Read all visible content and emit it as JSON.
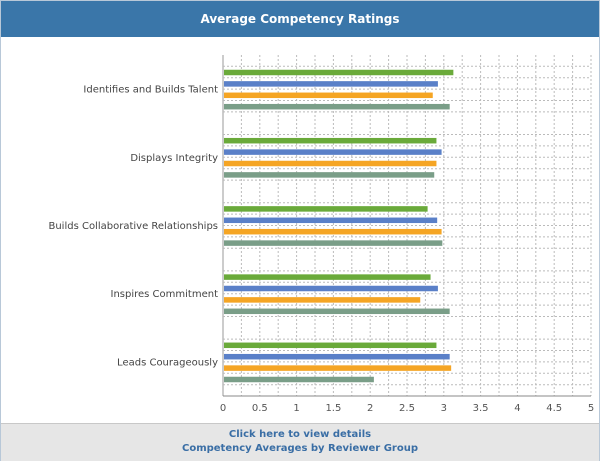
{
  "header": {
    "title": "Average Competency Ratings"
  },
  "footer": {
    "details_link": "Click here to view details",
    "group_link": "Competency Averages by Reviewer Group"
  },
  "colors": {
    "header_bg": "#3a76a9",
    "series": [
      "#6aaa3a",
      "#5a80c8",
      "#f5a524",
      "#7a9e88"
    ]
  },
  "chart_data": {
    "type": "bar",
    "orientation": "horizontal",
    "title": "Average Competency Ratings",
    "categories": [
      "Identifies and Builds Talent",
      "Displays Integrity",
      "Builds Collaborative Relationships",
      "Inspires Commitment",
      "Leads Courageously"
    ],
    "series": [
      {
        "color": "#6aaa3a",
        "values": [
          3.13,
          2.9,
          2.78,
          2.82,
          2.9
        ]
      },
      {
        "color": "#5a80c8",
        "values": [
          2.92,
          2.97,
          2.91,
          2.92,
          3.08
        ]
      },
      {
        "color": "#f5a524",
        "values": [
          2.85,
          2.9,
          2.97,
          2.68,
          3.1
        ]
      },
      {
        "color": "#7a9e88",
        "values": [
          3.08,
          2.87,
          2.98,
          3.08,
          2.05
        ]
      }
    ],
    "xlim": [
      0,
      5
    ],
    "xticks": [
      "0",
      "0.5",
      "1",
      "1.5",
      "2",
      "2.5",
      "3",
      "3.5",
      "4",
      "4.5",
      "5"
    ],
    "grid": true,
    "legend": "none"
  }
}
